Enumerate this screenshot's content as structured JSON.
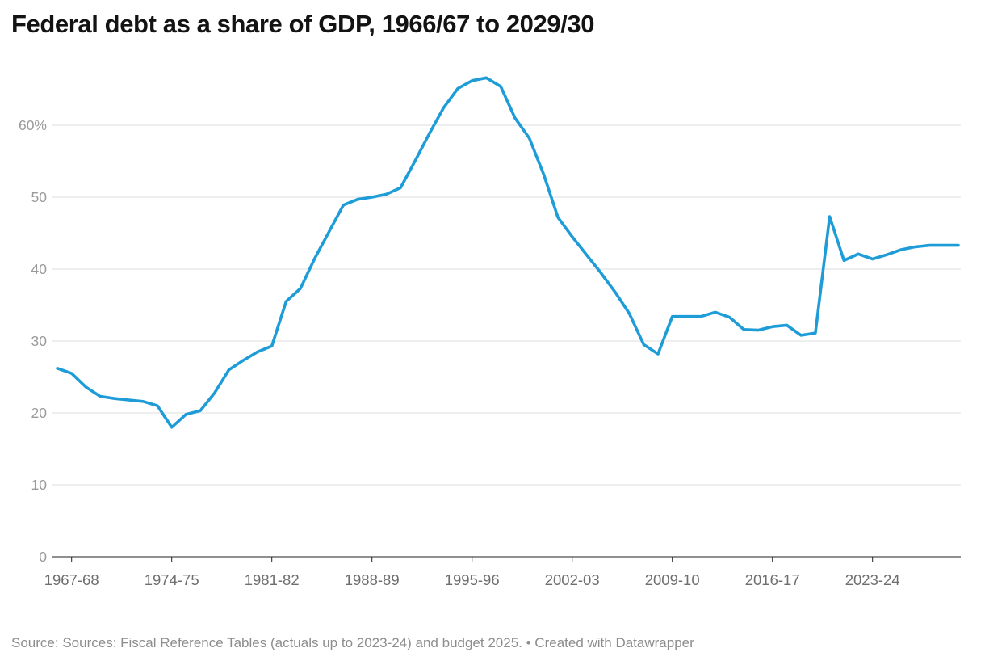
{
  "title": "Federal debt as a share of GDP, 1966/67 to 2029/30",
  "footer": {
    "source_label": "Source:",
    "source_text": "Sources: Fiscal Reference Tables (actuals up to 2023-24) and budget 2025.",
    "separator": "•",
    "attribution": "Created with Datawrapper"
  },
  "chart_data": {
    "type": "line",
    "title": "Federal debt as a share of GDP, 1966/67 to 2029/30",
    "xlabel": "",
    "ylabel": "",
    "unit": "% of GDP",
    "grid": "horizontal",
    "legend": "none",
    "line_color": "#1E9CD8",
    "grid_color": "#dddddd",
    "axis_color": "#222222",
    "y_label_color": "#9a9a9a",
    "x_label_color": "#6e6e6e",
    "ylim": [
      0,
      67
    ],
    "y_ticks": [
      0,
      10,
      20,
      30,
      40,
      50,
      60
    ],
    "y_tick_labels": [
      "0",
      "10",
      "20",
      "30",
      "40",
      "50",
      "60%"
    ],
    "x_tick_labels": [
      "1967-68",
      "1974-75",
      "1981-82",
      "1988-89",
      "1995-96",
      "2002-03",
      "2009-10",
      "2016-17",
      "2023-24"
    ],
    "x": [
      "1966-67",
      "1967-68",
      "1968-69",
      "1969-70",
      "1970-71",
      "1971-72",
      "1972-73",
      "1973-74",
      "1974-75",
      "1975-76",
      "1976-77",
      "1977-78",
      "1978-79",
      "1979-80",
      "1980-81",
      "1981-82",
      "1982-83",
      "1983-84",
      "1984-85",
      "1985-86",
      "1986-87",
      "1987-88",
      "1988-89",
      "1989-90",
      "1990-91",
      "1991-92",
      "1992-93",
      "1993-94",
      "1994-95",
      "1995-96",
      "1996-97",
      "1997-98",
      "1998-99",
      "1999-00",
      "2000-01",
      "2001-02",
      "2002-03",
      "2003-04",
      "2004-05",
      "2005-06",
      "2006-07",
      "2007-08",
      "2008-09",
      "2009-10",
      "2010-11",
      "2011-12",
      "2012-13",
      "2013-14",
      "2014-15",
      "2015-16",
      "2016-17",
      "2017-18",
      "2018-19",
      "2019-20",
      "2020-21",
      "2021-22",
      "2022-23",
      "2023-24",
      "2024-25",
      "2025-26",
      "2026-27",
      "2027-28",
      "2028-29",
      "2029-30"
    ],
    "values": [
      26.2,
      25.5,
      23.6,
      22.3,
      22.0,
      21.8,
      21.6,
      21.0,
      18.0,
      19.8,
      20.3,
      22.8,
      26.0,
      27.3,
      28.5,
      29.3,
      35.5,
      37.3,
      41.5,
      45.2,
      48.9,
      49.7,
      50.0,
      50.4,
      51.3,
      55.0,
      58.8,
      62.4,
      65.1,
      66.2,
      66.6,
      65.4,
      61.0,
      58.2,
      53.2,
      47.2,
      44.5,
      42.0,
      39.5,
      36.8,
      33.8,
      29.5,
      28.2,
      33.4,
      33.4,
      33.4,
      34.0,
      33.3,
      31.6,
      31.5,
      32.0,
      32.2,
      30.8,
      31.1,
      47.3,
      41.2,
      42.1,
      41.4,
      42.0,
      42.7,
      43.1,
      43.3,
      43.3,
      43.3
    ]
  }
}
